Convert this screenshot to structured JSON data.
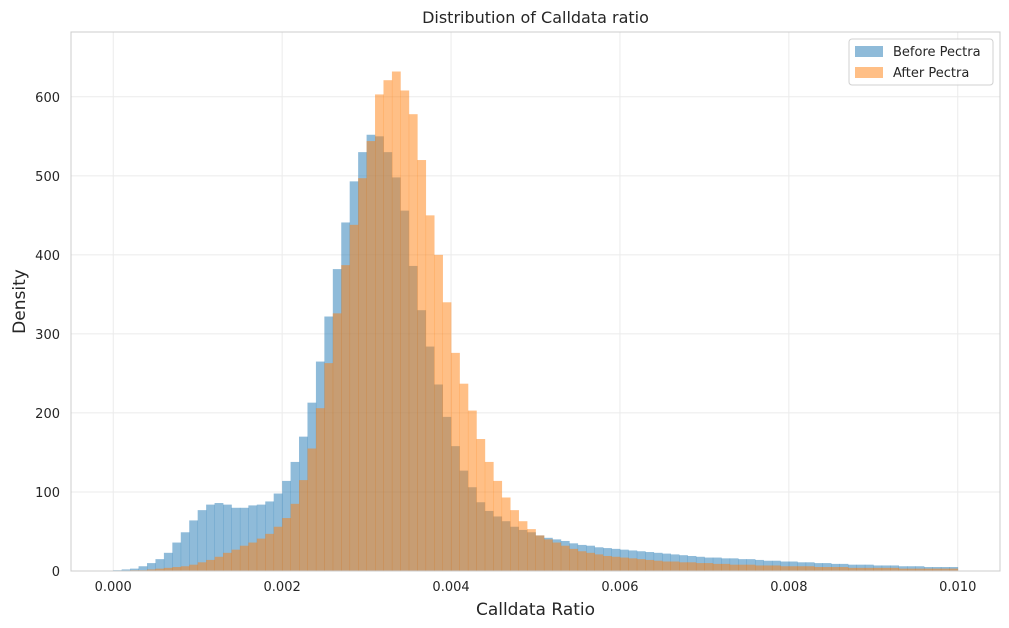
{
  "chart_data": {
    "type": "bar",
    "subtype": "overlaid-histogram",
    "title": "Distribution of Calldata ratio",
    "xlabel": "Calldata Ratio",
    "ylabel": "Density",
    "xlim": [
      -0.0005,
      0.0105
    ],
    "ylim": [
      0,
      682
    ],
    "bin_width": 0.0001,
    "bin_start": 0.0,
    "x_ticks": [
      {
        "value": 0.0,
        "label": "0.000"
      },
      {
        "value": 0.002,
        "label": "0.002"
      },
      {
        "value": 0.004,
        "label": "0.004"
      },
      {
        "value": 0.006,
        "label": "0.006"
      },
      {
        "value": 0.008,
        "label": "0.008"
      },
      {
        "value": 0.01,
        "label": "0.010"
      }
    ],
    "y_ticks": [
      {
        "value": 0,
        "label": "0"
      },
      {
        "value": 100,
        "label": "100"
      },
      {
        "value": 200,
        "label": "200"
      },
      {
        "value": 300,
        "label": "300"
      },
      {
        "value": 400,
        "label": "400"
      },
      {
        "value": 500,
        "label": "500"
      },
      {
        "value": 600,
        "label": "600"
      }
    ],
    "grid": true,
    "legend_position": "top-right",
    "series": [
      {
        "name": "Before Pectra",
        "color": "#1f77b4",
        "opacity": 0.5,
        "values": [
          1,
          2,
          3,
          6,
          10,
          15,
          23,
          36,
          49,
          64,
          77,
          84,
          86,
          84,
          80,
          80,
          83,
          84,
          88,
          98,
          114,
          138,
          170,
          213,
          265,
          322,
          382,
          441,
          493,
          530,
          552,
          550,
          530,
          498,
          456,
          386,
          330,
          284,
          236,
          195,
          158,
          127,
          106,
          87,
          76,
          69,
          63,
          56,
          52,
          49,
          45,
          42,
          40,
          38,
          35,
          33,
          32,
          30,
          29,
          28,
          27,
          26,
          25,
          24,
          23,
          22,
          21,
          20,
          19,
          18,
          17,
          17,
          16,
          16,
          15,
          15,
          14,
          13,
          13,
          12,
          12,
          11,
          11,
          10,
          10,
          9,
          9,
          8,
          8,
          8,
          7,
          7,
          7,
          6,
          6,
          6,
          5,
          5,
          5,
          5
        ]
      },
      {
        "name": "After Pectra",
        "color": "#ff7f0e",
        "opacity": 0.5,
        "values": [
          0,
          0,
          1,
          1,
          2,
          3,
          4,
          5,
          6,
          8,
          11,
          14,
          18,
          23,
          27,
          32,
          36,
          41,
          47,
          56,
          67,
          85,
          115,
          155,
          206,
          263,
          326,
          387,
          438,
          497,
          544,
          603,
          621,
          632,
          608,
          578,
          520,
          450,
          400,
          340,
          276,
          237,
          203,
          167,
          138,
          114,
          93,
          77,
          63,
          53,
          45,
          40,
          36,
          32,
          28,
          25,
          23,
          21,
          19,
          18,
          17,
          16,
          15,
          14,
          13,
          12,
          12,
          11,
          11,
          10,
          10,
          9,
          9,
          8,
          8,
          8,
          7,
          7,
          7,
          6,
          6,
          6,
          6,
          5,
          5,
          5,
          5,
          4,
          4,
          4,
          4,
          4,
          4,
          3,
          3,
          3,
          3,
          3,
          3,
          3
        ]
      }
    ],
    "legend": [
      "Before Pectra",
      "After Pectra"
    ]
  }
}
